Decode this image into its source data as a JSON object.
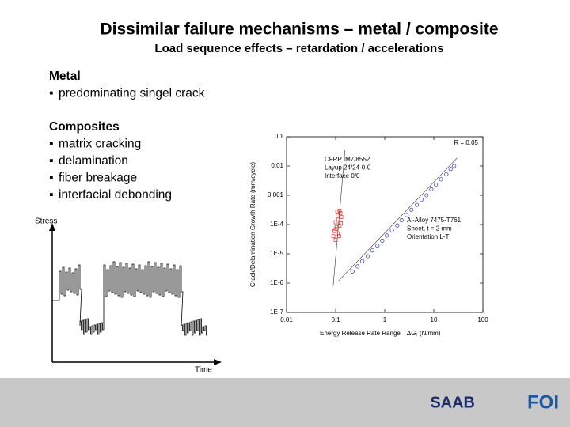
{
  "header": {
    "title": "Dissimilar failure mechanisms – metal / composite",
    "subtitle": "Load sequence effects – retardation / accelerations"
  },
  "sections": [
    {
      "heading": "Metal",
      "bullets": [
        "predominating singel crack"
      ]
    },
    {
      "heading": "Composites",
      "bullets": [
        "matrix cracking",
        "delamination",
        "fiber breakage",
        "interfacial debonding"
      ]
    }
  ],
  "diagram": {
    "y_label": "Stress",
    "x_label": "Time"
  },
  "footer": {
    "logos": [
      "SAAB",
      "FOI"
    ]
  },
  "chart_data": {
    "type": "scatter",
    "xlabel": {
      "text": "Energy Release Rate Range",
      "symbol": "ΔG",
      "subscript": "I",
      "unit": "(N/mm)"
    },
    "ylabel": "Crack/Delamination Growth Rate (mm/cycle)",
    "annotation": "R = 0.05",
    "log_x": true,
    "log_y": true,
    "grid": false,
    "xlim": [
      0.01,
      100
    ],
    "xticks": [
      0.01,
      0.1,
      1,
      10,
      100
    ],
    "ylim": [
      1e-07,
      0.1
    ],
    "yticks": [
      {
        "value": 1e-07,
        "label": "1E-7"
      },
      {
        "value": 1e-06,
        "label": "1E-6"
      },
      {
        "value": 1e-05,
        "label": "1E-5"
      },
      {
        "value": 0.0001,
        "label": "1E-4"
      },
      0.001,
      0.01,
      0.1
    ],
    "series": [
      {
        "label": [
          "CFRP IM7/8552",
          "Layup 24/24-0-0",
          "Interface 0/0"
        ],
        "color": "#e03030",
        "marker": "square",
        "x": [
          0.09,
          0.095,
          0.1,
          0.1,
          0.105,
          0.11,
          0.11,
          0.115,
          0.12,
          0.12,
          0.125,
          0.13,
          0.1,
          0.108,
          0.118,
          0.128
        ],
        "values": [
          4e-05,
          6e-05,
          3e-05,
          0.00012,
          8e-05,
          5e-05,
          0.0002,
          0.00015,
          0.0003,
          9e-05,
          0.00025,
          0.00018,
          7e-05,
          0.00028,
          4e-05,
          0.00011
        ],
        "fit": {
          "x": [
            0.089,
            0.155
          ],
          "values": [
            8e-07,
            0.035
          ]
        }
      },
      {
        "label": [
          "Al-Alloy 7475-T761",
          "Sheet, t = 2 mm",
          "Orientation L-T"
        ],
        "color": "#2030c0",
        "marker": "circle",
        "x": [
          0.22,
          0.28,
          0.35,
          0.45,
          0.56,
          0.71,
          0.89,
          1.1,
          1.4,
          1.8,
          2.2,
          2.8,
          3.5,
          4.5,
          5.6,
          7.1,
          8.9,
          11,
          14,
          18,
          22,
          26
        ],
        "values": [
          2.5e-06,
          3.7e-06,
          5.6e-06,
          8.3e-06,
          1.3e-05,
          1.9e-05,
          2.8e-05,
          4.2e-05,
          6.3e-05,
          9.3e-05,
          0.00014,
          0.00021,
          0.00032,
          0.00047,
          0.00071,
          0.001,
          0.0016,
          0.0023,
          0.0035,
          0.0052,
          0.0079,
          0.01
        ],
        "fit": {
          "x": [
            0.115,
            30
          ],
          "values": [
            1.2e-06,
            0.019
          ]
        }
      }
    ]
  }
}
